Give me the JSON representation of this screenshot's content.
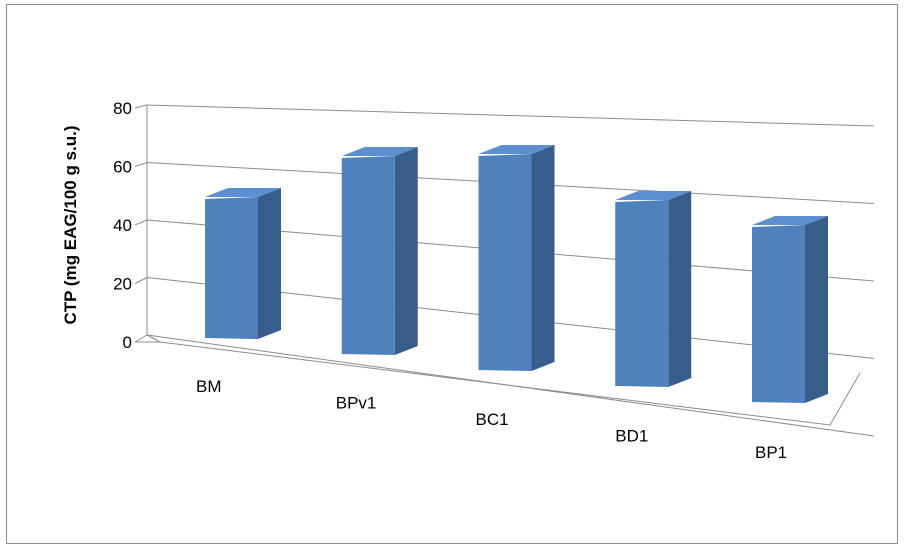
{
  "chart_data": {
    "type": "bar",
    "style": "3d-perspective",
    "categories": [
      "BM",
      "BPv1",
      "BC1",
      "BD1",
      "BP1"
    ],
    "values": [
      47,
      66,
      72,
      62,
      59
    ],
    "ylabel": "CTP (mg EAG/100 g s.u.)",
    "xlabel": "",
    "ylim": [
      0,
      80
    ],
    "yticks": [
      0,
      20,
      40,
      60,
      80
    ],
    "grid": true,
    "legend": "none",
    "colors": {
      "bar_front": "#4f81bd",
      "bar_side": "#385d8a",
      "bar_top": "#5b8fd0",
      "grid": "#8c8c8c"
    }
  }
}
